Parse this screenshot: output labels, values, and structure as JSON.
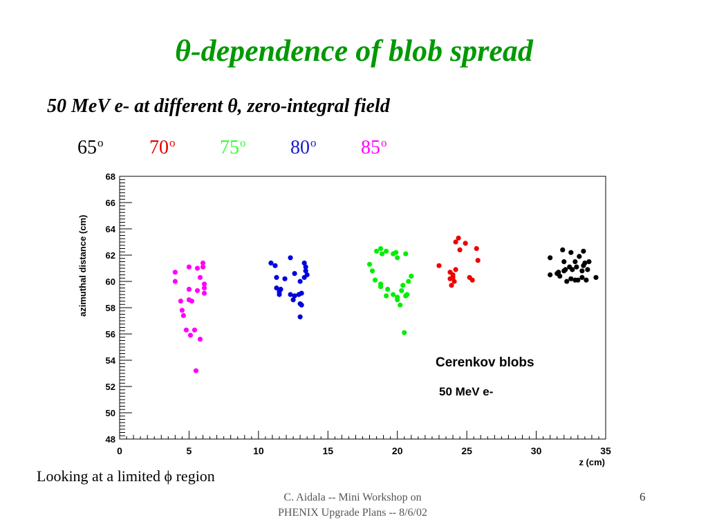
{
  "slide": {
    "title_symbol": "θ",
    "title_text": "-dependence of blob spread",
    "subtitle_pre": "50 MeV e- at different ",
    "subtitle_symbol": "θ",
    "subtitle_post": ", zero-integral field",
    "angle_labels": [
      {
        "value": "65",
        "unit": "o",
        "color": "#000000"
      },
      {
        "value": "70",
        "unit": "o",
        "color": "#e00000"
      },
      {
        "value": "75",
        "unit": "o",
        "color": "#33ff33"
      },
      {
        "value": "80",
        "unit": "o",
        "color": "#1a1acc"
      },
      {
        "value": "85",
        "unit": "o",
        "color": "#ff00ff"
      }
    ],
    "note": "Looking at a limited ϕ region",
    "footer_line1": "C. Aidala -- Mini Workshop on",
    "footer_line2": "PHENIX Upgrade Plans -- 8/6/02",
    "page_number": "6"
  },
  "chart_data": {
    "type": "scatter",
    "xlabel": "z (cm)",
    "ylabel": "azimuthal distance (cm)",
    "xlim": [
      0,
      35
    ],
    "ylim": [
      48,
      68
    ],
    "x_ticks": [
      0,
      5,
      10,
      15,
      20,
      25,
      30,
      35
    ],
    "y_ticks": [
      48,
      50,
      52,
      54,
      56,
      58,
      60,
      62,
      64,
      66,
      68
    ],
    "annotations": [
      "Cerenkov blobs",
      "50 MeV e-"
    ],
    "grid": false,
    "series": [
      {
        "color": "#ff00ff",
        "points": [
          [
            4.0,
            60.7
          ],
          [
            4.0,
            60.0
          ],
          [
            4.4,
            58.5
          ],
          [
            4.5,
            57.8
          ],
          [
            4.6,
            57.4
          ],
          [
            4.8,
            56.3
          ],
          [
            5.0,
            61.1
          ],
          [
            5.0,
            59.4
          ],
          [
            5.0,
            58.6
          ],
          [
            5.1,
            55.9
          ],
          [
            5.2,
            58.5
          ],
          [
            5.4,
            56.3
          ],
          [
            5.5,
            53.2
          ],
          [
            5.6,
            61.0
          ],
          [
            5.6,
            59.3
          ],
          [
            5.8,
            55.6
          ],
          [
            5.8,
            60.3
          ],
          [
            6.0,
            61.4
          ],
          [
            6.0,
            61.1
          ],
          [
            6.1,
            59.8
          ],
          [
            6.1,
            59.5
          ],
          [
            6.1,
            59.1
          ]
        ]
      },
      {
        "color": "#0000dd",
        "points": [
          [
            10.9,
            61.4
          ],
          [
            11.2,
            61.2
          ],
          [
            11.3,
            60.3
          ],
          [
            11.3,
            59.5
          ],
          [
            11.5,
            59.2
          ],
          [
            11.6,
            59.4
          ],
          [
            11.5,
            59.0
          ],
          [
            11.9,
            60.2
          ],
          [
            12.3,
            61.8
          ],
          [
            12.3,
            59.0
          ],
          [
            12.6,
            60.6
          ],
          [
            12.6,
            58.9
          ],
          [
            12.9,
            59.0
          ],
          [
            13.0,
            58.3
          ],
          [
            13.0,
            57.3
          ],
          [
            13.0,
            60.0
          ],
          [
            13.1,
            59.1
          ],
          [
            13.1,
            58.2
          ],
          [
            13.3,
            60.3
          ],
          [
            13.3,
            61.4
          ],
          [
            13.4,
            60.8
          ],
          [
            13.4,
            61.1
          ],
          [
            13.5,
            60.5
          ],
          [
            12.5,
            58.6
          ]
        ]
      },
      {
        "color": "#00ee00",
        "points": [
          [
            18.0,
            61.3
          ],
          [
            18.2,
            60.8
          ],
          [
            18.4,
            60.1
          ],
          [
            18.5,
            62.3
          ],
          [
            18.8,
            62.5
          ],
          [
            18.9,
            62.1
          ],
          [
            18.8,
            59.8
          ],
          [
            18.8,
            59.6
          ],
          [
            19.2,
            62.3
          ],
          [
            19.3,
            59.4
          ],
          [
            19.2,
            58.9
          ],
          [
            19.7,
            62.1
          ],
          [
            19.9,
            62.2
          ],
          [
            19.7,
            59.0
          ],
          [
            20.0,
            61.8
          ],
          [
            20.0,
            58.8
          ],
          [
            20.0,
            58.6
          ],
          [
            20.2,
            58.2
          ],
          [
            20.4,
            59.7
          ],
          [
            20.3,
            59.3
          ],
          [
            20.6,
            62.1
          ],
          [
            20.6,
            58.9
          ],
          [
            20.7,
            59.0
          ],
          [
            20.5,
            56.1
          ],
          [
            20.8,
            60.0
          ],
          [
            21.0,
            60.4
          ]
        ]
      },
      {
        "color": "#ee0000",
        "points": [
          [
            23.0,
            61.2
          ],
          [
            23.8,
            60.7
          ],
          [
            23.8,
            60.2
          ],
          [
            23.9,
            59.7
          ],
          [
            24.0,
            60.5
          ],
          [
            24.1,
            60.0
          ],
          [
            24.2,
            60.9
          ],
          [
            24.2,
            63.0
          ],
          [
            24.4,
            63.3
          ],
          [
            24.5,
            62.4
          ],
          [
            24.9,
            62.9
          ],
          [
            25.2,
            60.3
          ],
          [
            25.4,
            60.1
          ],
          [
            25.7,
            62.5
          ],
          [
            25.8,
            61.6
          ],
          [
            24.0,
            60.3
          ]
        ]
      },
      {
        "color": "#000000",
        "points": [
          [
            31.0,
            61.8
          ],
          [
            31.0,
            60.5
          ],
          [
            31.5,
            60.6
          ],
          [
            31.6,
            60.7
          ],
          [
            31.7,
            60.4
          ],
          [
            31.9,
            62.4
          ],
          [
            32.0,
            61.5
          ],
          [
            32.0,
            60.8
          ],
          [
            32.1,
            60.9
          ],
          [
            32.2,
            60.0
          ],
          [
            32.4,
            61.1
          ],
          [
            32.5,
            62.2
          ],
          [
            32.5,
            60.2
          ],
          [
            32.6,
            60.9
          ],
          [
            32.8,
            61.5
          ],
          [
            32.8,
            60.1
          ],
          [
            32.9,
            61.1
          ],
          [
            33.0,
            60.1
          ],
          [
            33.1,
            61.9
          ],
          [
            33.3,
            60.3
          ],
          [
            33.3,
            60.8
          ],
          [
            33.4,
            61.2
          ],
          [
            33.4,
            62.3
          ],
          [
            33.6,
            60.1
          ],
          [
            33.7,
            60.9
          ],
          [
            33.8,
            61.5
          ],
          [
            34.3,
            60.3
          ],
          [
            33.5,
            61.4
          ]
        ]
      }
    ]
  }
}
